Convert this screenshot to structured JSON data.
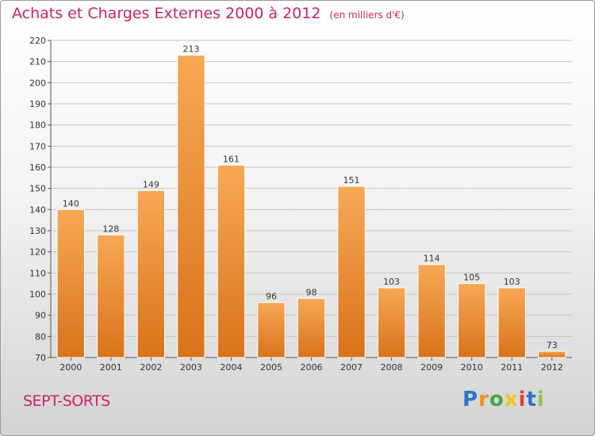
{
  "header": {
    "title": "Achats et Charges Externes 2000 à 2012",
    "subtitle": "(en milliers d'€)"
  },
  "footer": {
    "commune": "SEPT-SORTS",
    "logo": "Proxiti"
  },
  "colors": {
    "title": "#cc2366",
    "bar_light": "#f7a855",
    "bar_dark": "#d9731a",
    "logo": [
      "#2a76c6",
      "#f28c1e",
      "#48a54a",
      "#f0c419",
      "#e0443c",
      "#2a76c6",
      "#8bc34a"
    ]
  },
  "chart_data": {
    "type": "bar",
    "title": "Achats et Charges Externes 2000 à 2012",
    "subtitle": "(en milliers d'€)",
    "categories": [
      "2000",
      "2001",
      "2002",
      "2003",
      "2004",
      "2005",
      "2006",
      "2007",
      "2008",
      "2009",
      "2010",
      "2011",
      "2012"
    ],
    "values": [
      140,
      128,
      149,
      213,
      161,
      96,
      98,
      151,
      103,
      114,
      105,
      103,
      73
    ],
    "ylim": [
      70,
      220
    ],
    "yticks": [
      70,
      80,
      90,
      100,
      110,
      120,
      130,
      140,
      150,
      160,
      170,
      180,
      190,
      200,
      210,
      220
    ],
    "grid": true,
    "legend": "none"
  }
}
